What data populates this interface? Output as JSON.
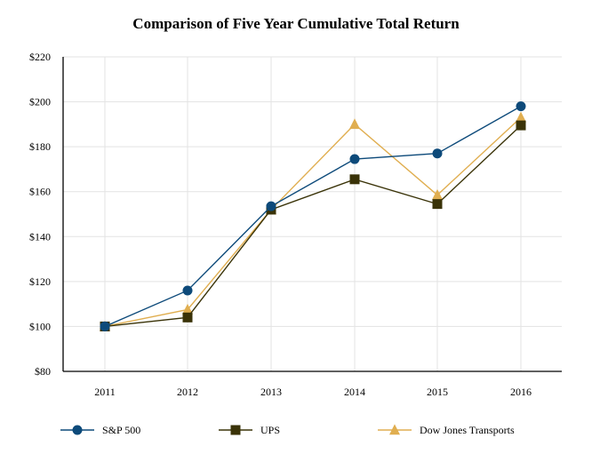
{
  "chart_data": {
    "type": "line",
    "title": "Comparison of Five Year Cumulative Total Return",
    "xlabel": "",
    "ylabel": "",
    "categories": [
      "2011",
      "2012",
      "2013",
      "2014",
      "2015",
      "2016"
    ],
    "y_ticks": [
      "$80",
      "$100",
      "$120",
      "$140",
      "$160",
      "$180",
      "$200",
      "$220"
    ],
    "ylim": [
      80,
      220
    ],
    "grid": true,
    "legend_position": "bottom",
    "series": [
      {
        "name": "S&P 500",
        "values": [
          100.0,
          116.0,
          153.5,
          174.5,
          177.0,
          198.0
        ],
        "color": "#0d4a7a",
        "marker": "circle"
      },
      {
        "name": "UPS",
        "values": [
          100.0,
          104.0,
          152.0,
          165.5,
          154.5,
          189.5
        ],
        "color": "#3a3308",
        "marker": "square"
      },
      {
        "name": "Dow Jones Transports",
        "values": [
          100.0,
          107.5,
          152.0,
          190.0,
          158.5,
          193.0
        ],
        "color": "#e0ae50",
        "marker": "triangle"
      }
    ]
  }
}
